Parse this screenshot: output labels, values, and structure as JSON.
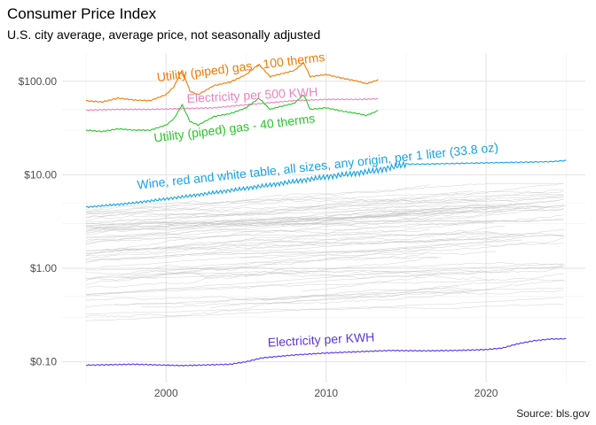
{
  "chart_data": {
    "type": "line",
    "title": "Consumer Price Index",
    "subtitle": "U.S. city average, average price, not seasonally adjusted",
    "caption": "Source: bls.gov",
    "xlabel": "",
    "ylabel": "",
    "y_scale": "log10",
    "ylim": [
      0.06,
      200
    ],
    "xlim": [
      1993.5,
      2026.2
    ],
    "x_ticks": [
      2000,
      2010,
      2020
    ],
    "x_tick_labels": [
      "2000",
      "2010",
      "2020"
    ],
    "y_ticks": [
      0.1,
      1,
      10,
      100
    ],
    "y_tick_labels": [
      "$0.10",
      "$1.00",
      "$10.00",
      "$100.00"
    ],
    "grid": true,
    "legend": "none",
    "background_series": {
      "color": "#bebebe",
      "x_range": [
        1995,
        2025
      ],
      "y_range": [
        0.25,
        8
      ]
    },
    "series": [
      {
        "name": "Utility (piped) gas - 100 therms",
        "color": "#f07a00",
        "x": [
          1995,
          1996,
          1997,
          1998,
          1999,
          2000,
          2000.5,
          2001,
          2001.5,
          2002,
          2003,
          2004,
          2005,
          2005.8,
          2006.5,
          2007,
          2008,
          2008.6,
          2009,
          2010,
          2011,
          2012,
          2012.5,
          2013.3
        ],
        "values": [
          62,
          60,
          66,
          63,
          62,
          72,
          88,
          132,
          78,
          72,
          90,
          98,
          118,
          152,
          112,
          118,
          130,
          158,
          112,
          118,
          108,
          100,
          94,
          104
        ]
      },
      {
        "name": "Electricity per 500 KWH",
        "color": "#ee82c0",
        "x": [
          1995,
          1997,
          1999,
          2001,
          2003,
          2005,
          2006,
          2007,
          2008,
          2009,
          2010,
          2011,
          2012,
          2013.3
        ],
        "values": [
          49,
          50,
          50,
          51,
          52,
          56,
          58,
          60,
          62,
          63,
          64,
          64,
          64,
          65
        ]
      },
      {
        "name": "Utility (piped) gas - 40 therms",
        "color": "#2ac62a",
        "x": [
          1995,
          1996,
          1997,
          1998,
          1999,
          2000,
          2000.5,
          2001,
          2001.5,
          2002,
          2003,
          2004,
          2005,
          2005.8,
          2006.5,
          2007,
          2008,
          2008.6,
          2009,
          2010,
          2011,
          2012,
          2012.5,
          2013.3
        ],
        "values": [
          30,
          29,
          31,
          30,
          30,
          34,
          40,
          56,
          37,
          34,
          42,
          45,
          52,
          66,
          50,
          53,
          58,
          72,
          50,
          52,
          48,
          45,
          43,
          49
        ]
      },
      {
        "name": "Wine, red and white table, all sizes, any origin, per 1 liter (33.8 oz)",
        "color": "#15a3e6",
        "x": [
          1995,
          1998,
          2001,
          2004,
          2007,
          2010,
          2013,
          2015,
          2016,
          2018,
          2020,
          2022,
          2024,
          2025
        ],
        "values": [
          4.5,
          5.0,
          5.8,
          6.8,
          8.0,
          9.5,
          11.0,
          13.0,
          13.0,
          13.2,
          13.4,
          13.6,
          13.8,
          14.2
        ]
      },
      {
        "name": "Electricity per KWH",
        "color": "#5a35e6",
        "x": [
          1995,
          1998,
          2001,
          2004,
          2005,
          2006,
          2008,
          2010,
          2012,
          2014,
          2016,
          2018,
          2020,
          2021,
          2022,
          2023,
          2024,
          2025
        ],
        "values": [
          0.092,
          0.094,
          0.091,
          0.094,
          0.1,
          0.11,
          0.118,
          0.124,
          0.128,
          0.132,
          0.131,
          0.132,
          0.135,
          0.14,
          0.156,
          0.168,
          0.175,
          0.176
        ]
      }
    ]
  }
}
